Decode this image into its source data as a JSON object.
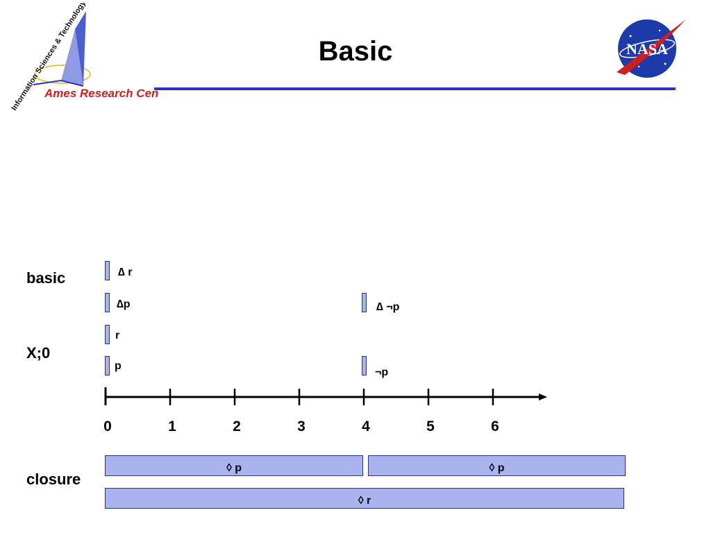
{
  "header": {
    "title": "Basic",
    "ames_logo_text": "Ames Research Center",
    "ames_logo_arc_text": "Information Sciences & Technology",
    "nasa_logo_text": "NASA"
  },
  "rows": {
    "basic_label": "basic",
    "x0_label": "X;0",
    "closure_label": "closure"
  },
  "markers": [
    {
      "time": 0,
      "label": "∆ r"
    },
    {
      "time": 0,
      "label": "∆p"
    },
    {
      "time": 4,
      "label": "∆ ¬p"
    },
    {
      "time": 0,
      "label": "r"
    },
    {
      "time": 0,
      "label": "p"
    },
    {
      "time": 4,
      "label": "¬p"
    }
  ],
  "timeline": {
    "ticks": [
      "0",
      "1",
      "2",
      "3",
      "4",
      "5",
      "6"
    ]
  },
  "closure_bars": [
    {
      "label": "◊ p"
    },
    {
      "label": "◊ p"
    },
    {
      "label": "◊ r"
    }
  ],
  "colors": {
    "accent_blue": "#2b35b8",
    "marker_fill": "#a9b3ee",
    "marker_border": "#2c2f7a",
    "nasa_blue": "#1c3aa9",
    "ames_red": "#cc1f1f"
  }
}
